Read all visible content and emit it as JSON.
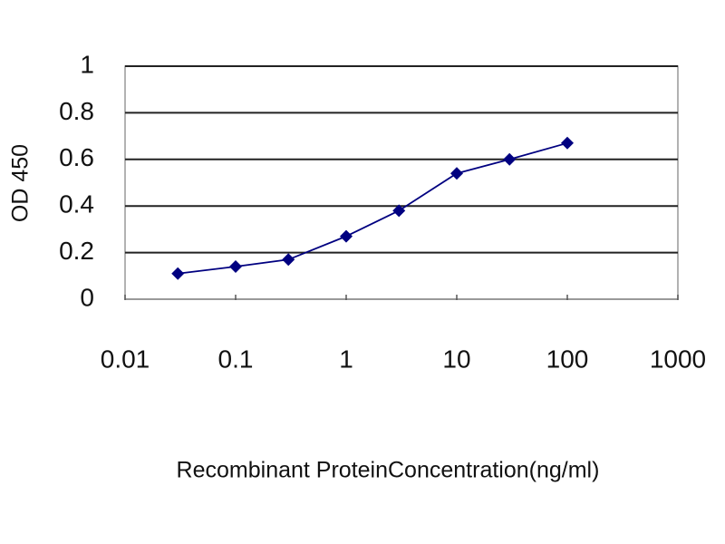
{
  "chart_data": {
    "type": "line",
    "x_label": "Recombinant ProteinConcentration(ng/ml)",
    "y_label": "OD 450",
    "x": [
      0.03,
      0.1,
      0.3,
      1,
      3,
      10,
      30,
      100
    ],
    "series": [
      {
        "name": "OD 450",
        "color": "#000080",
        "values": [
          0.11,
          0.14,
          0.17,
          0.27,
          0.38,
          0.54,
          0.6,
          0.67
        ]
      }
    ],
    "xscale": "log",
    "xlim": [
      0.01,
      1000
    ],
    "xticks": [
      0.01,
      0.1,
      1,
      10,
      100,
      1000
    ],
    "ylim": [
      0,
      1
    ],
    "yticks": [
      0,
      0.2,
      0.4,
      0.6,
      0.8,
      1
    ],
    "grid": true
  }
}
